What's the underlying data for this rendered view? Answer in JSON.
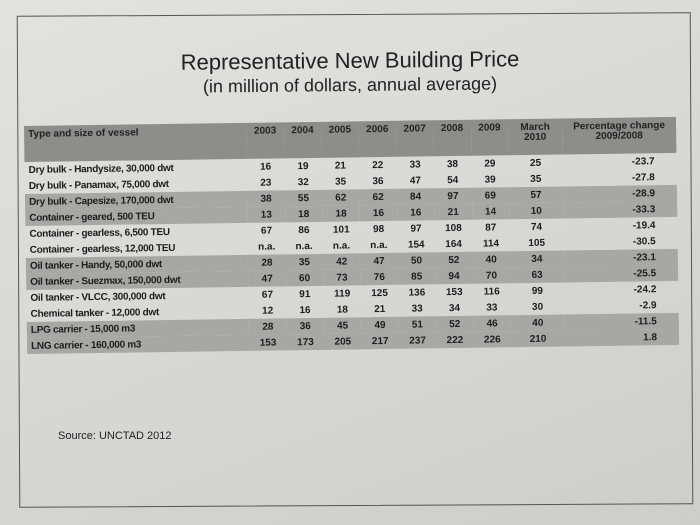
{
  "title": "Representative New Building Price",
  "subtitle": "(in million of dollars, annual average)",
  "table": {
    "headers": [
      "Type and size of vessel",
      "2003",
      "2004",
      "2005",
      "2006",
      "2007",
      "2008",
      "2009",
      "March 2010",
      "Percentage change 2009/2008"
    ],
    "rows": [
      {
        "name": "Dry bulk - Handysize, 30,000 dwt",
        "values": [
          "16",
          "19",
          "21",
          "22",
          "33",
          "38",
          "29",
          "25",
          "-23.7"
        ],
        "shaded": false
      },
      {
        "name": "Dry bulk - Panamax, 75,000 dwt",
        "values": [
          "23",
          "32",
          "35",
          "36",
          "47",
          "54",
          "39",
          "35",
          "-27.8"
        ],
        "shaded": false
      },
      {
        "name": "Dry bulk - Capesize, 170,000 dwt",
        "values": [
          "38",
          "55",
          "62",
          "62",
          "84",
          "97",
          "69",
          "57",
          "-28.9"
        ],
        "shaded": true
      },
      {
        "name": "Container - geared, 500 TEU",
        "values": [
          "13",
          "18",
          "18",
          "16",
          "16",
          "21",
          "14",
          "10",
          "-33.3"
        ],
        "shaded": true
      },
      {
        "name": "Container - gearless, 6,500 TEU",
        "values": [
          "67",
          "86",
          "101",
          "98",
          "97",
          "108",
          "87",
          "74",
          "-19.4"
        ],
        "shaded": false
      },
      {
        "name": "Container - gearless, 12,000 TEU",
        "values": [
          "n.a.",
          "n.a.",
          "n.a.",
          "n.a.",
          "154",
          "164",
          "114",
          "105",
          "-30.5"
        ],
        "shaded": false
      },
      {
        "name": "Oil tanker - Handy, 50,000 dwt",
        "values": [
          "28",
          "35",
          "42",
          "47",
          "50",
          "52",
          "40",
          "34",
          "-23.1"
        ],
        "shaded": true
      },
      {
        "name": "Oil tanker - Suezmax, 150,000 dwt",
        "values": [
          "47",
          "60",
          "73",
          "76",
          "85",
          "94",
          "70",
          "63",
          "-25.5"
        ],
        "shaded": true
      },
      {
        "name": "Oil tanker - VLCC, 300,000 dwt",
        "values": [
          "67",
          "91",
          "119",
          "125",
          "136",
          "153",
          "116",
          "99",
          "-24.2"
        ],
        "shaded": false
      },
      {
        "name": "Chemical tanker - 12,000 dwt",
        "values": [
          "12",
          "16",
          "18",
          "21",
          "33",
          "34",
          "33",
          "30",
          "-2.9"
        ],
        "shaded": false
      },
      {
        "name": "LPG carrier - 15,000 m3",
        "values": [
          "28",
          "36",
          "45",
          "49",
          "51",
          "52",
          "46",
          "40",
          "-11.5"
        ],
        "shaded": true
      },
      {
        "name": "LNG carrier - 160,000 m3",
        "values": [
          "153",
          "173",
          "205",
          "217",
          "237",
          "222",
          "226",
          "210",
          "1.8"
        ],
        "shaded": true
      }
    ]
  },
  "source": "Source: UNCTAD 2012"
}
